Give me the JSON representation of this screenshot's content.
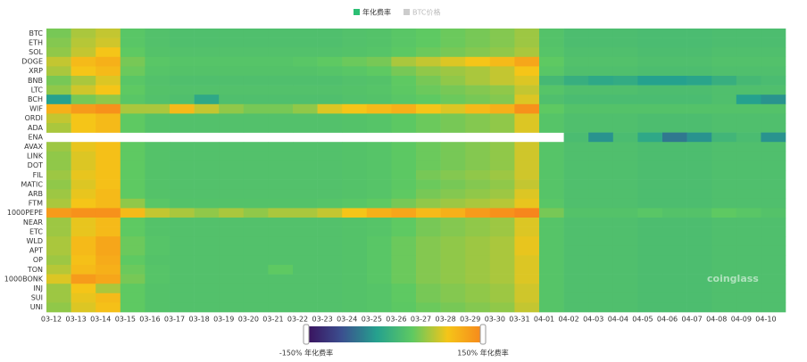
{
  "chart_data": {
    "type": "heatmap",
    "legend": [
      {
        "name": "年化费率",
        "color": "#2cbf74",
        "active": true
      },
      {
        "name": "BTC价格",
        "color": "#cccccc",
        "active": false
      }
    ],
    "rows": [
      "BTC",
      "ETH",
      "SOL",
      "DOGE",
      "XRP",
      "BNB",
      "LTC",
      "BCH",
      "WIF",
      "ORDI",
      "ADA",
      "ENA",
      "AVAX",
      "LINK",
      "DOT",
      "FIL",
      "MATIC",
      "ARB",
      "FTM",
      "1000PEPE",
      "NEAR",
      "ETC",
      "WLD",
      "APT",
      "OP",
      "TON",
      "1000BONK",
      "INJ",
      "SUI",
      "UNI"
    ],
    "categories": [
      "03-12",
      "03-13",
      "03-14",
      "03-15",
      "03-16",
      "03-17",
      "03-18",
      "03-19",
      "03-20",
      "03-21",
      "03-22",
      "03-23",
      "03-24",
      "03-25",
      "03-26",
      "03-27",
      "03-28",
      "03-29",
      "03-30",
      "03-31",
      "04-01",
      "04-02",
      "04-03",
      "04-04",
      "04-05",
      "04-06",
      "04-07",
      "04-08",
      "04-09",
      "04-10"
    ],
    "values": [
      [
        40,
        60,
        70,
        25,
        18,
        15,
        15,
        15,
        15,
        15,
        15,
        15,
        18,
        20,
        25,
        30,
        35,
        40,
        45,
        55,
        20,
        12,
        12,
        12,
        10,
        10,
        10,
        12,
        12,
        12
      ],
      [
        45,
        65,
        75,
        25,
        18,
        15,
        15,
        15,
        15,
        15,
        15,
        15,
        18,
        20,
        25,
        30,
        35,
        40,
        45,
        55,
        20,
        12,
        12,
        12,
        10,
        10,
        10,
        12,
        12,
        12
      ],
      [
        50,
        70,
        90,
        30,
        20,
        18,
        18,
        18,
        18,
        18,
        18,
        18,
        20,
        22,
        28,
        35,
        40,
        45,
        50,
        60,
        22,
        15,
        15,
        15,
        12,
        12,
        12,
        15,
        15,
        15
      ],
      [
        70,
        100,
        110,
        40,
        25,
        22,
        22,
        22,
        22,
        22,
        25,
        30,
        35,
        40,
        60,
        70,
        80,
        90,
        100,
        120,
        30,
        18,
        18,
        18,
        15,
        15,
        15,
        18,
        18,
        18
      ],
      [
        60,
        90,
        100,
        35,
        22,
        20,
        20,
        20,
        20,
        20,
        20,
        22,
        25,
        30,
        40,
        50,
        55,
        60,
        70,
        90,
        25,
        15,
        15,
        15,
        12,
        12,
        12,
        15,
        15,
        15
      ],
      [
        40,
        60,
        80,
        25,
        18,
        15,
        15,
        15,
        15,
        15,
        15,
        15,
        18,
        20,
        30,
        40,
        50,
        60,
        70,
        80,
        5,
        -10,
        -20,
        -15,
        -30,
        -30,
        -25,
        -10,
        5,
        10
      ],
      [
        50,
        75,
        90,
        30,
        20,
        18,
        18,
        18,
        18,
        18,
        18,
        18,
        20,
        22,
        28,
        35,
        40,
        45,
        50,
        70,
        22,
        15,
        15,
        15,
        12,
        12,
        12,
        15,
        15,
        15
      ],
      [
        -30,
        40,
        50,
        25,
        18,
        15,
        -20,
        15,
        15,
        15,
        15,
        15,
        18,
        20,
        25,
        30,
        35,
        40,
        45,
        80,
        15,
        10,
        10,
        10,
        10,
        10,
        10,
        15,
        -30,
        -40
      ],
      [
        110,
        130,
        140,
        60,
        60,
        100,
        70,
        50,
        40,
        40,
        50,
        80,
        90,
        100,
        110,
        90,
        80,
        100,
        110,
        140,
        30,
        20,
        20,
        20,
        20,
        20,
        20,
        20,
        20,
        20
      ],
      [
        70,
        90,
        100,
        30,
        20,
        18,
        18,
        18,
        18,
        18,
        18,
        18,
        20,
        22,
        28,
        35,
        40,
        45,
        50,
        80,
        22,
        15,
        15,
        15,
        12,
        12,
        12,
        15,
        15,
        15
      ],
      [
        60,
        90,
        100,
        30,
        20,
        18,
        18,
        18,
        18,
        18,
        18,
        18,
        20,
        22,
        28,
        35,
        40,
        45,
        50,
        80,
        22,
        15,
        15,
        15,
        12,
        12,
        12,
        15,
        15,
        15
      ],
      [
        null,
        null,
        null,
        null,
        null,
        null,
        null,
        null,
        null,
        null,
        null,
        null,
        null,
        null,
        null,
        null,
        null,
        null,
        null,
        null,
        null,
        10,
        -40,
        10,
        -20,
        -60,
        -40,
        0,
        10,
        -40
      ],
      [
        55,
        85,
        95,
        30,
        20,
        18,
        18,
        18,
        18,
        18,
        18,
        18,
        20,
        22,
        28,
        35,
        40,
        45,
        50,
        75,
        22,
        15,
        15,
        15,
        12,
        12,
        12,
        15,
        15,
        15
      ],
      [
        50,
        80,
        95,
        30,
        20,
        18,
        18,
        18,
        18,
        18,
        18,
        18,
        20,
        22,
        28,
        35,
        40,
        45,
        50,
        75,
        22,
        15,
        15,
        15,
        12,
        12,
        12,
        15,
        15,
        15
      ],
      [
        50,
        80,
        95,
        30,
        20,
        18,
        18,
        18,
        18,
        18,
        18,
        18,
        20,
        22,
        28,
        35,
        40,
        45,
        50,
        75,
        22,
        15,
        15,
        15,
        12,
        12,
        12,
        15,
        15,
        15
      ],
      [
        55,
        85,
        95,
        30,
        20,
        18,
        18,
        18,
        18,
        18,
        18,
        18,
        20,
        22,
        28,
        40,
        45,
        50,
        55,
        75,
        22,
        15,
        15,
        15,
        12,
        12,
        12,
        15,
        15,
        15
      ],
      [
        50,
        80,
        95,
        30,
        20,
        18,
        18,
        18,
        18,
        18,
        18,
        18,
        20,
        22,
        28,
        35,
        40,
        45,
        50,
        70,
        22,
        15,
        15,
        15,
        12,
        12,
        12,
        15,
        15,
        15
      ],
      [
        55,
        85,
        100,
        30,
        20,
        18,
        18,
        18,
        18,
        18,
        18,
        18,
        20,
        22,
        30,
        40,
        45,
        50,
        55,
        80,
        22,
        15,
        15,
        15,
        12,
        12,
        12,
        15,
        15,
        15
      ],
      [
        60,
        90,
        100,
        50,
        25,
        20,
        20,
        20,
        20,
        20,
        20,
        22,
        25,
        30,
        40,
        50,
        55,
        60,
        65,
        85,
        25,
        15,
        15,
        15,
        12,
        12,
        12,
        15,
        15,
        15
      ],
      [
        130,
        140,
        140,
        100,
        70,
        60,
        50,
        60,
        50,
        60,
        60,
        70,
        90,
        110,
        120,
        100,
        110,
        130,
        140,
        150,
        40,
        20,
        20,
        20,
        25,
        20,
        20,
        30,
        25,
        20
      ],
      [
        55,
        85,
        100,
        30,
        20,
        18,
        18,
        18,
        18,
        18,
        18,
        18,
        20,
        22,
        30,
        40,
        45,
        50,
        55,
        80,
        22,
        15,
        15,
        15,
        12,
        12,
        12,
        15,
        15,
        15
      ],
      [
        55,
        85,
        100,
        30,
        20,
        18,
        18,
        18,
        18,
        18,
        18,
        18,
        20,
        22,
        30,
        40,
        45,
        50,
        55,
        80,
        22,
        15,
        15,
        15,
        12,
        12,
        12,
        15,
        15,
        15
      ],
      [
        60,
        100,
        120,
        35,
        22,
        18,
        18,
        18,
        18,
        18,
        18,
        18,
        20,
        25,
        35,
        45,
        50,
        55,
        60,
        85,
        22,
        15,
        15,
        15,
        12,
        12,
        12,
        15,
        15,
        15
      ],
      [
        60,
        100,
        120,
        35,
        22,
        18,
        18,
        18,
        18,
        18,
        18,
        18,
        20,
        25,
        35,
        45,
        50,
        55,
        60,
        85,
        22,
        15,
        15,
        15,
        12,
        12,
        12,
        15,
        15,
        15
      ],
      [
        55,
        95,
        115,
        30,
        20,
        18,
        18,
        18,
        18,
        18,
        18,
        18,
        20,
        25,
        35,
        45,
        50,
        55,
        60,
        80,
        22,
        15,
        15,
        15,
        12,
        12,
        12,
        15,
        15,
        15
      ],
      [
        65,
        100,
        110,
        35,
        22,
        18,
        18,
        18,
        18,
        30,
        18,
        18,
        20,
        25,
        35,
        45,
        50,
        55,
        60,
        80,
        22,
        15,
        15,
        15,
        12,
        12,
        12,
        15,
        15,
        15
      ],
      [
        80,
        130,
        120,
        40,
        22,
        18,
        18,
        18,
        18,
        18,
        18,
        18,
        20,
        25,
        35,
        45,
        50,
        55,
        60,
        80,
        22,
        15,
        15,
        15,
        12,
        12,
        12,
        15,
        15,
        15
      ],
      [
        55,
        90,
        60,
        30,
        20,
        18,
        18,
        18,
        18,
        18,
        18,
        18,
        20,
        22,
        30,
        40,
        45,
        50,
        55,
        75,
        22,
        15,
        15,
        15,
        12,
        12,
        12,
        15,
        15,
        15
      ],
      [
        55,
        85,
        100,
        30,
        20,
        18,
        18,
        18,
        18,
        18,
        18,
        18,
        20,
        22,
        30,
        40,
        45,
        50,
        55,
        75,
        22,
        15,
        15,
        15,
        12,
        12,
        12,
        15,
        15,
        15
      ],
      [
        50,
        80,
        95,
        30,
        20,
        18,
        18,
        18,
        18,
        18,
        18,
        18,
        20,
        22,
        28,
        35,
        40,
        45,
        50,
        70,
        22,
        15,
        15,
        15,
        12,
        12,
        12,
        15,
        15,
        15
      ]
    ],
    "zlim": [
      -150,
      150
    ],
    "colors": [
      "#3a0f5c",
      "#3b4f8f",
      "#25a18e",
      "#5ec962",
      "#f5c518",
      "#f7861c"
    ],
    "colorbar_ticks": [
      {
        "value": -150,
        "label": "-150% 年化费率"
      },
      {
        "value": 150,
        "label": "150% 年化费率"
      }
    ],
    "watermark": "coinglass"
  }
}
